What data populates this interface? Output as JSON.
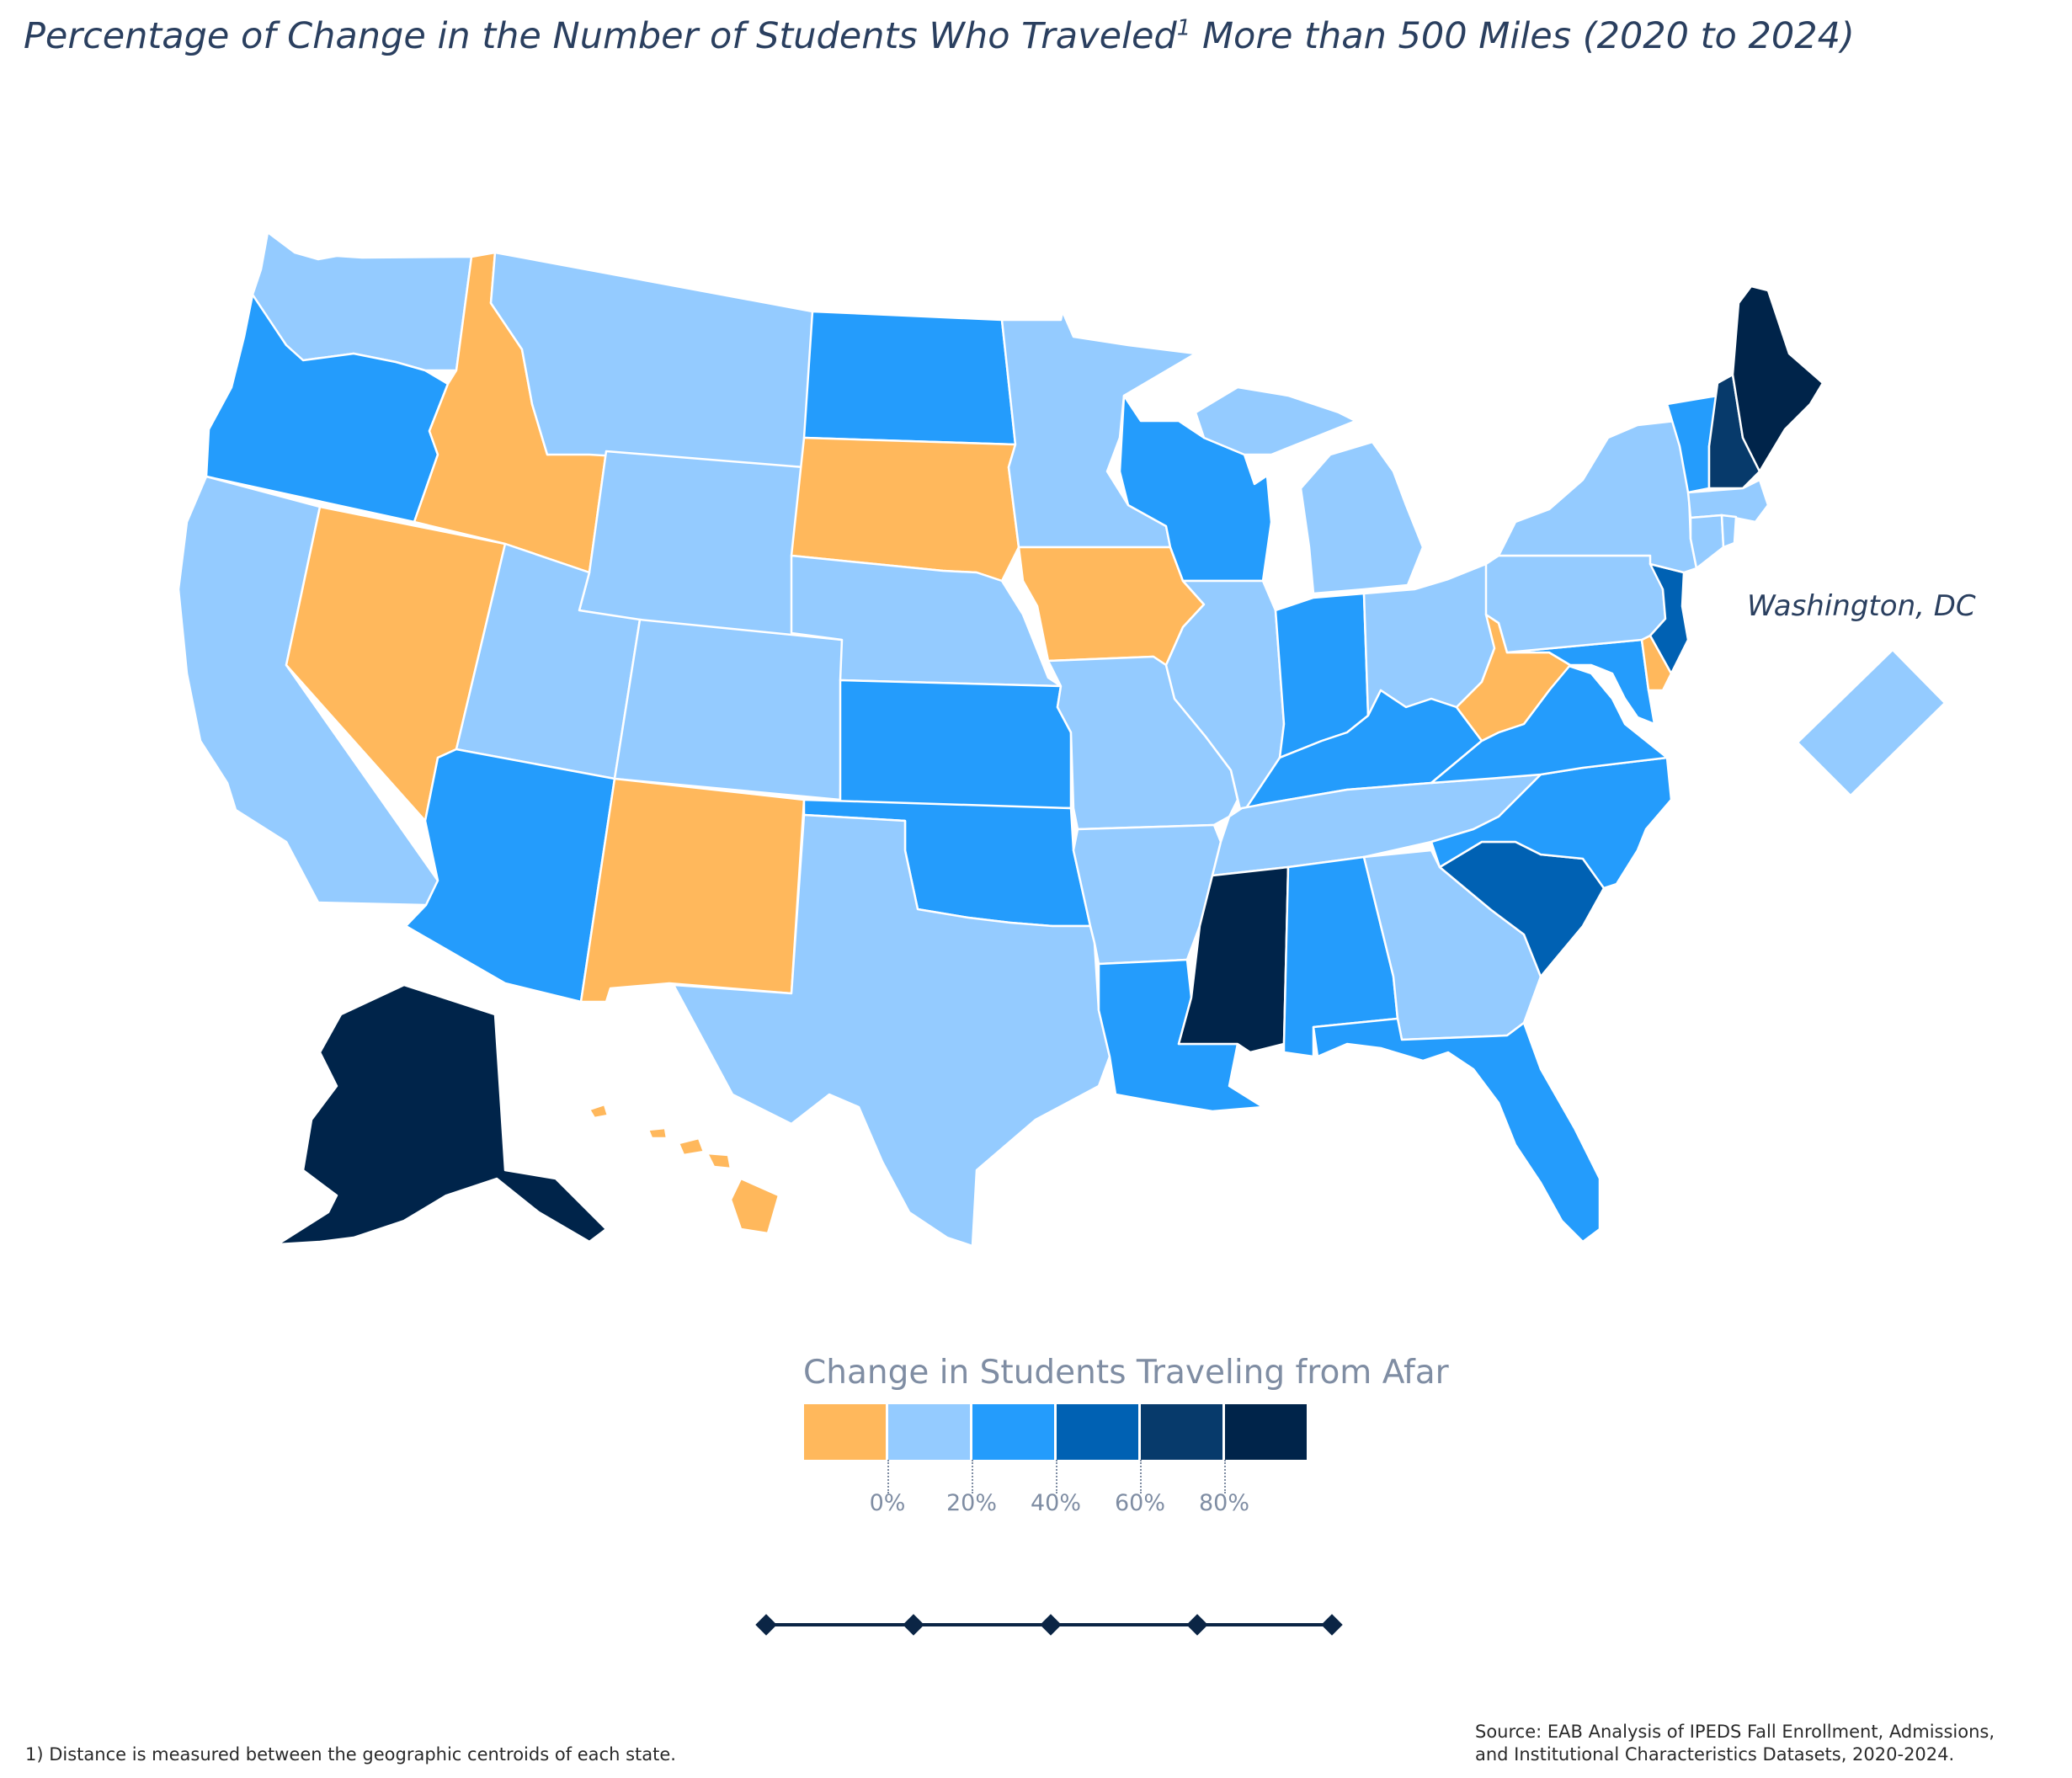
{
  "title": {
    "text_before": "Percentage of Change in the Number of Students Who Traveled",
    "superscript": "1",
    "text_after": " More than 500 Miles (2020 to 2024)"
  },
  "inset_label": "Washington, DC",
  "legend": {
    "title": "Change in Students Traveling from Afar",
    "bins": [
      {
        "color": "#FFB85C",
        "range": "< 0%"
      },
      {
        "color": "#94CBFF",
        "range": "0% to 20%"
      },
      {
        "color": "#249CFC",
        "range": "20% to 40%"
      },
      {
        "color": "#0061B3",
        "range": "40% to 60%"
      },
      {
        "color": "#073A6B",
        "range": "60% to 80%"
      },
      {
        "color": "#00244A",
        "range": "> 80%"
      }
    ],
    "tick_labels": [
      "0%",
      "20%",
      "40%",
      "60%",
      "80%"
    ]
  },
  "states": {
    "WA": 1,
    "OR": 2,
    "CA": 1,
    "NV": 0,
    "ID": 0,
    "MT": 1,
    "WY": 1,
    "UT": 1,
    "AZ": 2,
    "CO": 1,
    "NM": 0,
    "ND": 2,
    "SD": 0,
    "NE": 1,
    "KS": 2,
    "OK": 2,
    "TX": 1,
    "MN": 1,
    "IA": 0,
    "MO": 1,
    "AR": 1,
    "LA": 2,
    "WI": 2,
    "IL": 1,
    "MI": 1,
    "IN": 2,
    "OH": 1,
    "KY": 2,
    "TN": 1,
    "MS": 5,
    "AL": 2,
    "GA": 1,
    "FL": 2,
    "SC": 3,
    "NC": 2,
    "VA": 2,
    "WV": 0,
    "MD": 2,
    "DE": 0,
    "NJ": 3,
    "PA": 1,
    "NY": 1,
    "VT": 2,
    "NH": 4,
    "ME": 5,
    "MA": 1,
    "CT": 1,
    "RI": 1,
    "AK": 5,
    "HI": 0,
    "DC": 1
  },
  "slider": {
    "steps": 5,
    "color": "#0B2545"
  },
  "footnote": "1)  Distance is measured between the geographic centroids of each state.",
  "source": {
    "line1": "Source: EAB Analysis of IPEDS Fall Enrollment, Admissions,",
    "line2": "and Institutional Characteristics Datasets, 2020-2024."
  }
}
